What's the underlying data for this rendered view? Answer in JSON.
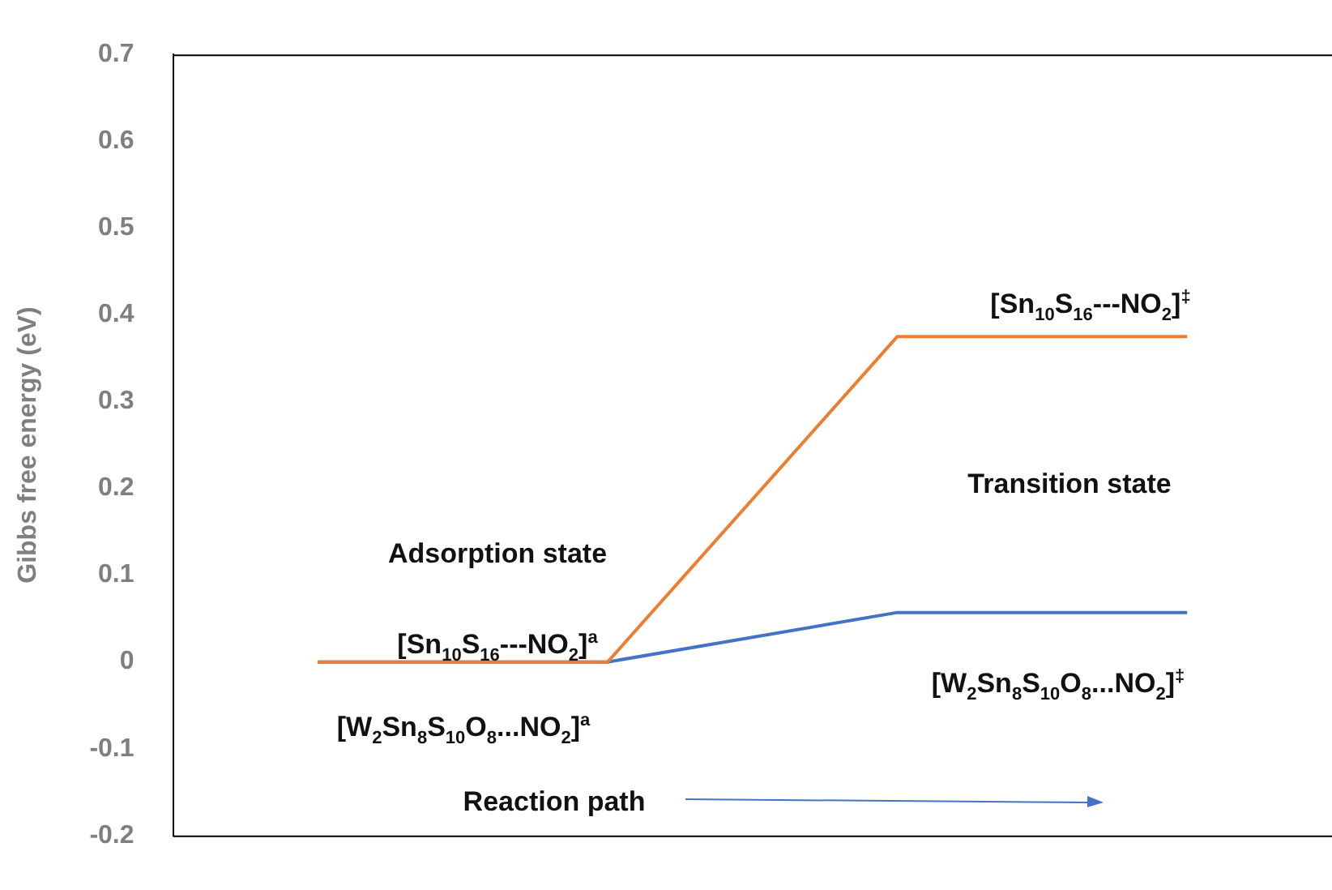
{
  "chart_data": {
    "type": "line",
    "ylabel": "Gibbs free energy (eV)",
    "categories": [
      null,
      null,
      null,
      null
    ],
    "series": [
      {
        "color": "#ed7d31",
        "values": [
          0,
          0,
          0.375,
          0.375
        ]
      },
      {
        "color": "#4472c4",
        "values": [
          0,
          0,
          0.057,
          0.057
        ]
      }
    ],
    "ylim": [
      -0.2,
      0.7
    ],
    "yticks": [
      -0.2,
      -0.1,
      0,
      0.1,
      0.2,
      0.3,
      0.4,
      0.5,
      0.6,
      0.7
    ],
    "grid": false,
    "legend": false,
    "marker": "none",
    "line_style": "solid",
    "tick_labels": "y",
    "annotations": [
      "Adsorption state",
      "[Sn$_{10}$S$_{16}$---NO$_{2}$]$^{a}$",
      "[W$_{2}$Sn$_{8}$S$_{10}$O$_{8}$...NO$_{2}$]$^{a}$",
      "[Sn$_{10}$S$_{16}$---NO$_{2}$]$^{‡}$",
      "Transition state",
      "[W$_{2}$Sn$_{8}$S$_{10}$O$_{8}$...NO$_{2}$]$^{‡}$",
      "Reaction path"
    ]
  }
}
